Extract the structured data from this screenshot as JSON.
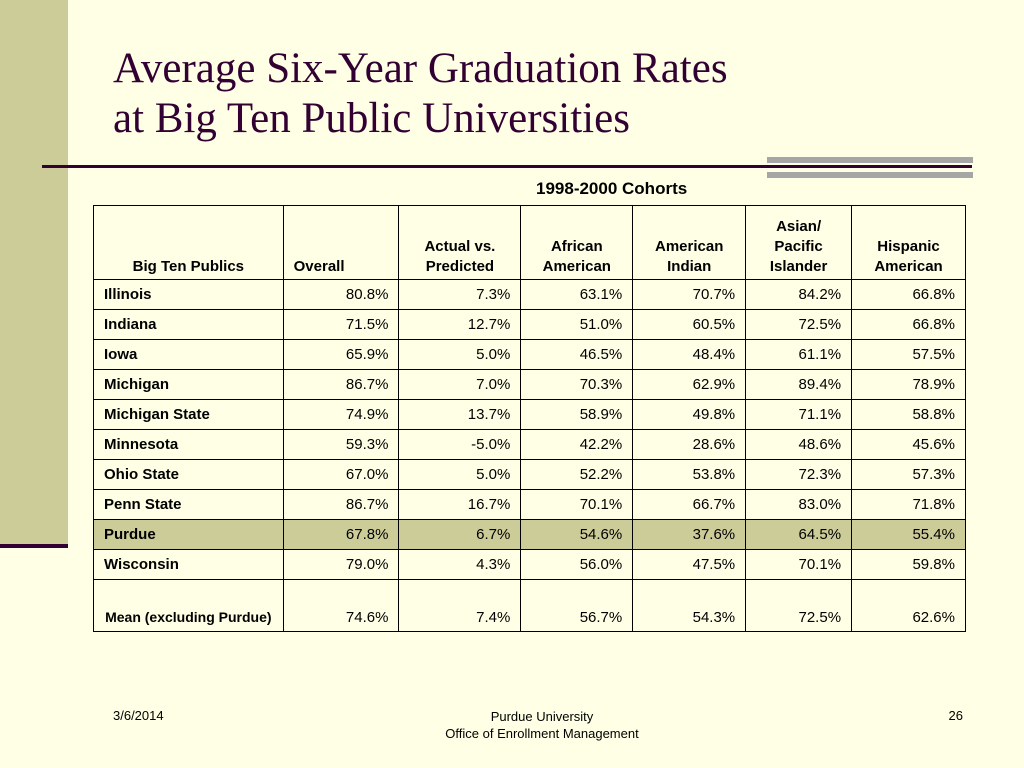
{
  "slide": {
    "title_line1": "Average Six-Year Graduation Rates",
    "title_line2": "at Big Ten Public Universities",
    "cohort_caption": "1998-2000 Cohorts"
  },
  "table": {
    "columns": [
      "Big Ten Publics",
      "Overall",
      "Actual vs. Predicted",
      "African American",
      "American Indian",
      "Asian/ Pacific Islander",
      "Hispanic American"
    ],
    "rows": [
      [
        "Illinois",
        "80.8%",
        "7.3%",
        "63.1%",
        "70.7%",
        "84.2%",
        "66.8%"
      ],
      [
        "Indiana",
        "71.5%",
        "12.7%",
        "51.0%",
        "60.5%",
        "72.5%",
        "66.8%"
      ],
      [
        "Iowa",
        "65.9%",
        "5.0%",
        "46.5%",
        "48.4%",
        "61.1%",
        "57.5%"
      ],
      [
        "Michigan",
        "86.7%",
        "7.0%",
        "70.3%",
        "62.9%",
        "89.4%",
        "78.9%"
      ],
      [
        "Michigan State",
        "74.9%",
        "13.7%",
        "58.9%",
        "49.8%",
        "71.1%",
        "58.8%"
      ],
      [
        "Minnesota",
        "59.3%",
        "-5.0%",
        "42.2%",
        "28.6%",
        "48.6%",
        "45.6%"
      ],
      [
        "Ohio State",
        "67.0%",
        "5.0%",
        "52.2%",
        "53.8%",
        "72.3%",
        "57.3%"
      ],
      [
        "Penn State",
        "86.7%",
        "16.7%",
        "70.1%",
        "66.7%",
        "83.0%",
        "71.8%"
      ],
      [
        "Purdue",
        "67.8%",
        "6.7%",
        "54.6%",
        "37.6%",
        "64.5%",
        "55.4%"
      ],
      [
        "Wisconsin",
        "79.0%",
        "4.3%",
        "56.0%",
        "47.5%",
        "70.1%",
        "59.8%"
      ],
      [
        "Mean (excluding Purdue)",
        "74.6%",
        "7.4%",
        "56.7%",
        "54.3%",
        "72.5%",
        "62.6%"
      ]
    ],
    "highlight_row": "Purdue"
  },
  "footer": {
    "date": "3/6/2014",
    "org_line1": "Purdue University",
    "org_line2": "Office of Enrollment Management",
    "page_number": "26"
  },
  "colors": {
    "background": "#ffffe5",
    "accent_olive": "#cccc99",
    "title_plum": "#330033",
    "accent_gray": "#a6a6a6"
  }
}
